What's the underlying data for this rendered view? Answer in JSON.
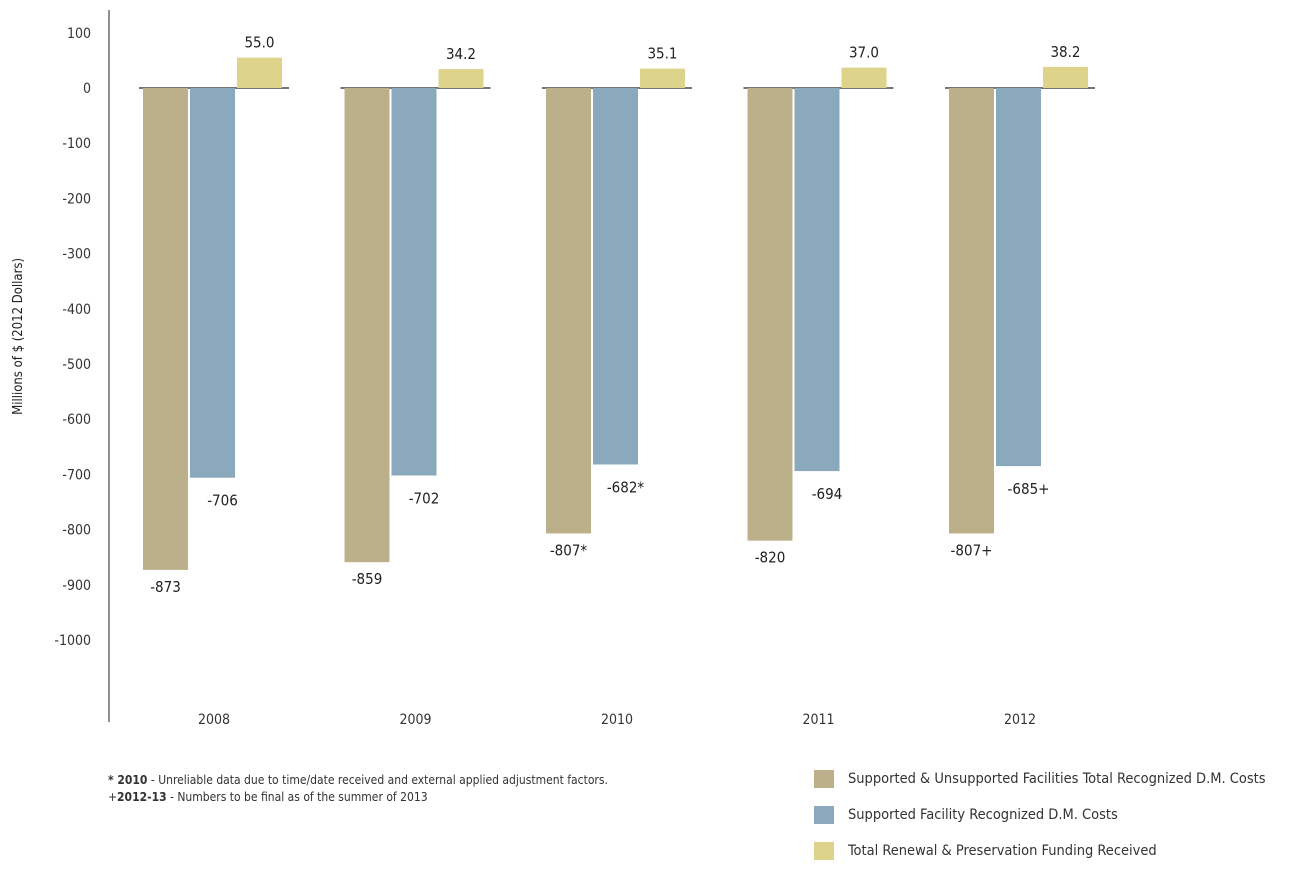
{
  "chart_data": {
    "type": "bar",
    "ylabel": "Millions of $ (2012 Dollars)",
    "xlabel": "",
    "ylim": [
      -1000,
      100
    ],
    "yticks": [
      100,
      0,
      -100,
      -200,
      -300,
      -400,
      -500,
      -600,
      -700,
      -800,
      -900,
      -1000
    ],
    "categories": [
      "2008",
      "2009",
      "2010",
      "2011",
      "2012"
    ],
    "series": [
      {
        "name": "Supported & Unsupported Facilities Total Recognized D.M. Costs",
        "color": "#bcb08b",
        "values": [
          -873,
          -859,
          -807,
          -820,
          -807
        ],
        "labels": [
          "-873",
          "-859",
          "-807*",
          "-820",
          "-807+"
        ]
      },
      {
        "name": "Supported Facility Recognized D.M. Costs",
        "color": "#8aa9bd",
        "values": [
          -706,
          -702,
          -682,
          -694,
          -685
        ],
        "labels": [
          "-706",
          "-702",
          "-682*",
          "-694",
          "-685+"
        ]
      },
      {
        "name": "Total Renewal & Preservation Funding Received",
        "color": "#ddd38a",
        "values": [
          55.0,
          34.2,
          35.1,
          37.0,
          38.2
        ],
        "labels": [
          "55.0",
          "34.2",
          "35.1",
          "37.0",
          "38.2"
        ]
      }
    ],
    "legend_position": "bottom-right",
    "grid": false
  },
  "footnotes": [
    {
      "bold": "* 2010",
      "text": " - Unreliable data due to time/date received and external applied adjustment factors."
    },
    {
      "prefix": "+",
      "bold": "2012-13",
      "text": " - Numbers to be final as of the summer of 2013"
    }
  ]
}
